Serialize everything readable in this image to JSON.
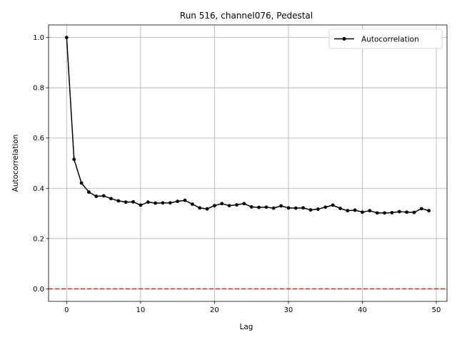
{
  "chart_data": {
    "type": "line",
    "title": "Run 516, channel076, Pedestal",
    "xlabel": "Lag",
    "ylabel": "Autocorrelation",
    "xlim": [
      -2.45,
      51.45
    ],
    "ylim": [
      -0.05,
      1.05
    ],
    "xticks": [
      0,
      10,
      20,
      30,
      40,
      50
    ],
    "yticks": [
      0.0,
      0.2,
      0.4,
      0.6,
      0.8,
      1.0
    ],
    "xtick_labels": [
      "0",
      "10",
      "20",
      "30",
      "40",
      "50"
    ],
    "ytick_labels": [
      "0.0",
      "0.2",
      "0.4",
      "0.6",
      "0.8",
      "1.0"
    ],
    "grid": true,
    "legend": {
      "placement": "top-right",
      "entries": [
        "Autocorrelation"
      ]
    },
    "series": [
      {
        "name": "Autocorrelation",
        "color": "#000000",
        "marker": "circle",
        "x": [
          0,
          1,
          2,
          3,
          4,
          5,
          6,
          7,
          8,
          9,
          10,
          11,
          12,
          13,
          14,
          15,
          16,
          17,
          18,
          19,
          20,
          21,
          22,
          23,
          24,
          25,
          26,
          27,
          28,
          29,
          30,
          31,
          32,
          33,
          34,
          35,
          36,
          37,
          38,
          39,
          40,
          41,
          42,
          43,
          44,
          45,
          46,
          47,
          48,
          49
        ],
        "y": [
          1.0,
          0.515,
          0.421,
          0.385,
          0.368,
          0.37,
          0.359,
          0.35,
          0.345,
          0.346,
          0.333,
          0.345,
          0.341,
          0.342,
          0.342,
          0.348,
          0.352,
          0.337,
          0.322,
          0.318,
          0.331,
          0.339,
          0.331,
          0.334,
          0.339,
          0.326,
          0.324,
          0.325,
          0.321,
          0.33,
          0.322,
          0.321,
          0.322,
          0.314,
          0.317,
          0.325,
          0.333,
          0.32,
          0.311,
          0.313,
          0.305,
          0.311,
          0.302,
          0.302,
          0.303,
          0.307,
          0.305,
          0.304,
          0.319,
          0.311
        ]
      }
    ],
    "reference_line": {
      "y": 0.0,
      "color": "#d62728",
      "style": "dashed"
    }
  }
}
